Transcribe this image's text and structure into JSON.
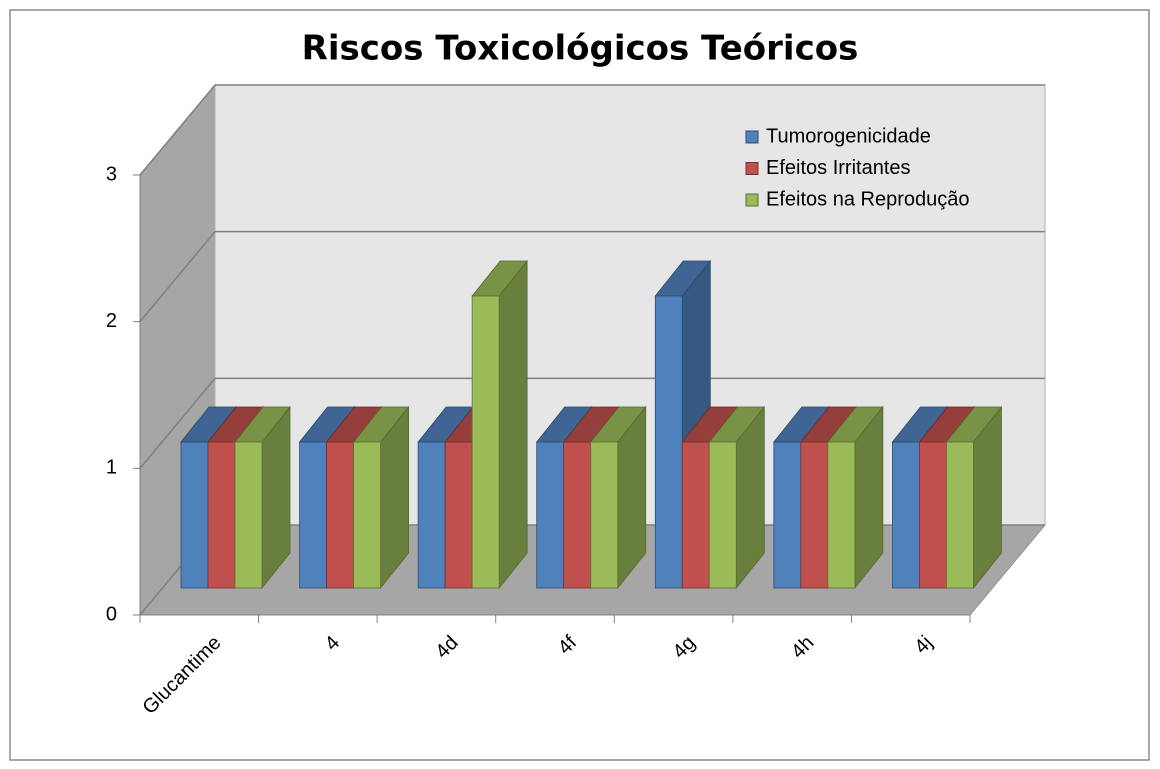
{
  "chart_data": {
    "type": "bar3d",
    "title": "Riscos Toxicológicos Teóricos",
    "categories": [
      "Glucantime",
      "4",
      "4d",
      "4f",
      "4g",
      "4h",
      "4j"
    ],
    "series": [
      {
        "name": "Tumorogenicidade",
        "color": "#4f81bd",
        "values": [
          1,
          1,
          1,
          1,
          2,
          1,
          1
        ]
      },
      {
        "name": "Efeitos Irritantes",
        "color": "#c0504d",
        "values": [
          1,
          1,
          1,
          1,
          1,
          1,
          1
        ]
      },
      {
        "name": "Efeitos na Reprodução",
        "color": "#9bbb59",
        "values": [
          1,
          1,
          2,
          1,
          1,
          1,
          1
        ]
      }
    ],
    "ylim": [
      0,
      3
    ],
    "yticks": [
      0,
      1,
      2,
      3
    ],
    "grid": true,
    "legend": "top-right"
  }
}
